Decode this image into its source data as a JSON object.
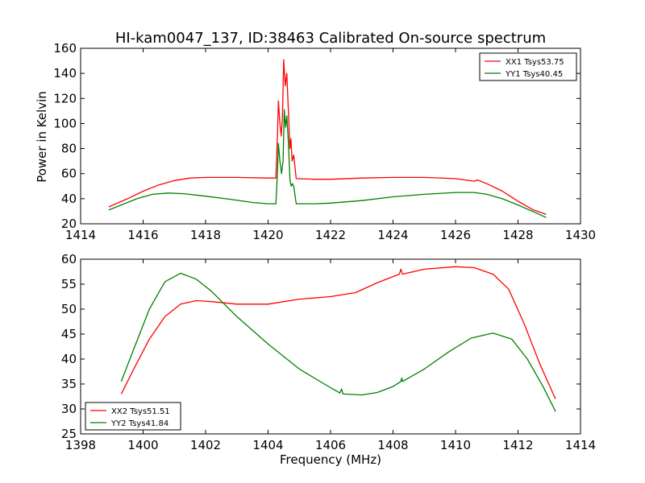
{
  "chart_data": [
    {
      "type": "line",
      "title": "HI-kam0047_137, ID:38463 Calibrated On-source spectrum",
      "xlabel": "",
      "ylabel": "Power in Kelvin",
      "xlim": [
        1414,
        1430
      ],
      "ylim": [
        20,
        160
      ],
      "xticks": [
        1414,
        1416,
        1418,
        1420,
        1422,
        1424,
        1426,
        1428,
        1430
      ],
      "yticks": [
        20,
        40,
        60,
        80,
        100,
        120,
        140,
        160
      ],
      "legend_position": "top-right",
      "series": [
        {
          "name": "XX1 Tsys53.75",
          "color": "#ff0000",
          "points": [
            [
              1414.9,
              33.5
            ],
            [
              1415.5,
              40
            ],
            [
              1416.0,
              46
            ],
            [
              1416.5,
              51
            ],
            [
              1417.0,
              54.5
            ],
            [
              1417.5,
              56.5
            ],
            [
              1418.0,
              57
            ],
            [
              1419.0,
              57
            ],
            [
              1420.0,
              56.5
            ],
            [
              1420.25,
              56.5
            ],
            [
              1420.3,
              90
            ],
            [
              1420.33,
              118
            ],
            [
              1420.38,
              100
            ],
            [
              1420.42,
              90
            ],
            [
              1420.46,
              105
            ],
            [
              1420.5,
              151
            ],
            [
              1420.55,
              130
            ],
            [
              1420.6,
              140
            ],
            [
              1420.65,
              110
            ],
            [
              1420.7,
              80
            ],
            [
              1420.73,
              88
            ],
            [
              1420.77,
              70
            ],
            [
              1420.82,
              75
            ],
            [
              1420.9,
              56
            ],
            [
              1421.5,
              55.5
            ],
            [
              1422.0,
              55.5
            ],
            [
              1423.0,
              56.5
            ],
            [
              1424.0,
              57
            ],
            [
              1425.0,
              57
            ],
            [
              1426.0,
              56
            ],
            [
              1426.6,
              54
            ],
            [
              1426.7,
              55
            ],
            [
              1427.0,
              52
            ],
            [
              1427.5,
              46
            ],
            [
              1428.0,
              38
            ],
            [
              1428.5,
              31
            ],
            [
              1428.9,
              27.5
            ]
          ]
        },
        {
          "name": "YY1 Tsys40.45",
          "color": "#008000",
          "points": [
            [
              1414.9,
              31
            ],
            [
              1415.3,
              35
            ],
            [
              1415.8,
              40
            ],
            [
              1416.3,
              43.5
            ],
            [
              1416.8,
              44.5
            ],
            [
              1417.3,
              44
            ],
            [
              1418.0,
              42
            ],
            [
              1418.8,
              39.5
            ],
            [
              1419.5,
              37
            ],
            [
              1420.0,
              36
            ],
            [
              1420.25,
              36
            ],
            [
              1420.3,
              60
            ],
            [
              1420.33,
              84
            ],
            [
              1420.38,
              70
            ],
            [
              1420.43,
              60
            ],
            [
              1420.48,
              70
            ],
            [
              1420.52,
              111
            ],
            [
              1420.56,
              97
            ],
            [
              1420.6,
              106
            ],
            [
              1420.65,
              85
            ],
            [
              1420.7,
              55
            ],
            [
              1420.74,
              50
            ],
            [
              1420.78,
              52
            ],
            [
              1420.82,
              50
            ],
            [
              1420.9,
              36
            ],
            [
              1421.5,
              36
            ],
            [
              1422.0,
              36.5
            ],
            [
              1423.0,
              38.5
            ],
            [
              1424.0,
              41.5
            ],
            [
              1425.0,
              43.5
            ],
            [
              1426.0,
              45
            ],
            [
              1426.6,
              45
            ],
            [
              1427.0,
              43.5
            ],
            [
              1427.5,
              40
            ],
            [
              1428.0,
              35
            ],
            [
              1428.5,
              29.5
            ],
            [
              1428.9,
              25
            ]
          ]
        }
      ]
    },
    {
      "type": "line",
      "title": "",
      "xlabel": "Frequency (MHz)",
      "ylabel": "",
      "xlim": [
        1398,
        1414
      ],
      "ylim": [
        25,
        60
      ],
      "xticks": [
        1398,
        1400,
        1402,
        1404,
        1406,
        1408,
        1410,
        1412,
        1414
      ],
      "yticks": [
        25,
        30,
        35,
        40,
        45,
        50,
        55,
        60
      ],
      "legend_position": "lower-left",
      "series": [
        {
          "name": "XX2 Tsys51.51",
          "color": "#ff0000",
          "points": [
            [
              1399.3,
              33
            ],
            [
              1399.7,
              38
            ],
            [
              1400.2,
              44
            ],
            [
              1400.7,
              48.5
            ],
            [
              1401.2,
              51
            ],
            [
              1401.7,
              51.7
            ],
            [
              1402.2,
              51.5
            ],
            [
              1403.0,
              51
            ],
            [
              1404.0,
              51
            ],
            [
              1405.0,
              52
            ],
            [
              1406.0,
              52.5
            ],
            [
              1406.8,
              53.3
            ],
            [
              1407.5,
              55.3
            ],
            [
              1408.2,
              57
            ],
            [
              1408.25,
              58
            ],
            [
              1408.3,
              57
            ],
            [
              1409.0,
              58
            ],
            [
              1410.0,
              58.5
            ],
            [
              1410.6,
              58.3
            ],
            [
              1411.2,
              57
            ],
            [
              1411.7,
              54
            ],
            [
              1412.2,
              47
            ],
            [
              1412.7,
              39
            ],
            [
              1413.2,
              32
            ]
          ]
        },
        {
          "name": "YY2 Tsys41.84",
          "color": "#008000",
          "points": [
            [
              1399.3,
              35.5
            ],
            [
              1399.7,
              42
            ],
            [
              1400.2,
              50
            ],
            [
              1400.7,
              55.5
            ],
            [
              1401.2,
              57.2
            ],
            [
              1401.7,
              56
            ],
            [
              1402.2,
              53.5
            ],
            [
              1403.0,
              48.5
            ],
            [
              1404.0,
              43
            ],
            [
              1405.0,
              38
            ],
            [
              1405.8,
              35
            ],
            [
              1406.3,
              33.2
            ],
            [
              1406.35,
              34
            ],
            [
              1406.4,
              33
            ],
            [
              1407.0,
              32.8
            ],
            [
              1407.5,
              33.3
            ],
            [
              1408.0,
              34.5
            ],
            [
              1408.25,
              35.5
            ],
            [
              1408.28,
              36.2
            ],
            [
              1408.3,
              35.5
            ],
            [
              1409.0,
              38
            ],
            [
              1409.8,
              41.5
            ],
            [
              1410.5,
              44.2
            ],
            [
              1411.2,
              45.2
            ],
            [
              1411.8,
              44
            ],
            [
              1412.3,
              40
            ],
            [
              1412.8,
              34.5
            ],
            [
              1413.2,
              29.5
            ]
          ]
        }
      ]
    }
  ]
}
